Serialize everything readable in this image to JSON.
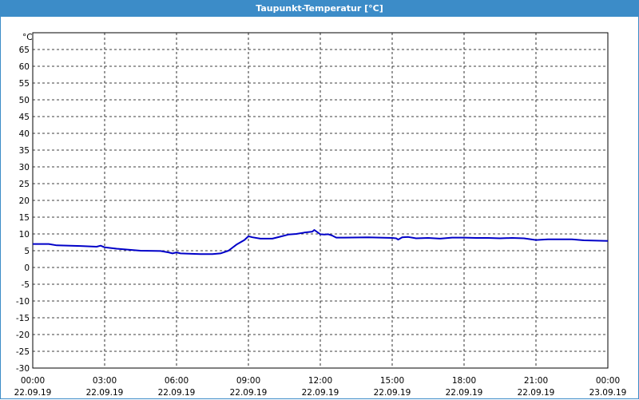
{
  "window": {
    "title": "Taupunkt-Temperatur [°C]"
  },
  "chart_data": {
    "type": "line",
    "title": "Taupunkt-Temperatur [°C]",
    "y_unit_label": "°C",
    "ylim": [
      -30,
      70
    ],
    "y_ticks": [
      65,
      60,
      55,
      50,
      45,
      40,
      35,
      30,
      25,
      20,
      15,
      10,
      5,
      0,
      -5,
      -10,
      -15,
      -20,
      -25,
      -30
    ],
    "x_range": [
      "22.09.19 00:00",
      "23.09.19 00:00"
    ],
    "x_ticks": [
      {
        "time": "00:00",
        "date": "22.09.19"
      },
      {
        "time": "03:00",
        "date": "22.09.19"
      },
      {
        "time": "06:00",
        "date": "22.09.19"
      },
      {
        "time": "09:00",
        "date": "22.09.19"
      },
      {
        "time": "12:00",
        "date": "22.09.19"
      },
      {
        "time": "15:00",
        "date": "22.09.19"
      },
      {
        "time": "18:00",
        "date": "22.09.19"
      },
      {
        "time": "21:00",
        "date": "22.09.19"
      },
      {
        "time": "00:00",
        "date": "23.09.19"
      }
    ],
    "grid": true,
    "series": [
      {
        "color": "#0000c8",
        "points": [
          [
            "22.09.19 00:00",
            7.0
          ],
          [
            "22.09.19 00:40",
            7.0
          ],
          [
            "22.09.19 01:00",
            6.6
          ],
          [
            "22.09.19 02:00",
            6.4
          ],
          [
            "22.09.19 02:40",
            6.2
          ],
          [
            "22.09.19 02:50",
            6.5
          ],
          [
            "22.09.19 03:00",
            6.0
          ],
          [
            "22.09.19 03:30",
            5.6
          ],
          [
            "22.09.19 04:00",
            5.3
          ],
          [
            "22.09.19 04:30",
            5.0
          ],
          [
            "22.09.19 05:20",
            4.9
          ],
          [
            "22.09.19 05:40",
            4.5
          ],
          [
            "22.09.19 05:50",
            4.2
          ],
          [
            "22.09.19 06:00",
            4.5
          ],
          [
            "22.09.19 06:10",
            4.2
          ],
          [
            "22.09.19 06:30",
            4.1
          ],
          [
            "22.09.19 07:00",
            4.0
          ],
          [
            "22.09.19 07:30",
            4.0
          ],
          [
            "22.09.19 07:50",
            4.2
          ],
          [
            "22.09.19 08:10",
            5.0
          ],
          [
            "22.09.19 08:30",
            6.8
          ],
          [
            "22.09.19 08:50",
            8.2
          ],
          [
            "22.09.19 09:00",
            9.3
          ],
          [
            "22.09.19 09:10",
            9.0
          ],
          [
            "22.09.19 09:30",
            8.6
          ],
          [
            "22.09.19 10:00",
            8.6
          ],
          [
            "22.09.19 10:20",
            9.2
          ],
          [
            "22.09.19 10:40",
            9.8
          ],
          [
            "22.09.19 11:00",
            10.0
          ],
          [
            "22.09.19 11:20",
            10.4
          ],
          [
            "22.09.19 11:40",
            10.7
          ],
          [
            "22.09.19 11:45",
            11.2
          ],
          [
            "22.09.19 12:00",
            9.9
          ],
          [
            "22.09.19 12:10",
            9.8
          ],
          [
            "22.09.19 12:20",
            9.9
          ],
          [
            "22.09.19 12:30",
            9.5
          ],
          [
            "22.09.19 12:40",
            8.9
          ],
          [
            "22.09.19 13:00",
            8.9
          ],
          [
            "22.09.19 14:00",
            9.0
          ],
          [
            "22.09.19 15:00",
            8.8
          ],
          [
            "22.09.19 15:10",
            8.7
          ],
          [
            "22.09.19 15:15",
            8.3
          ],
          [
            "22.09.19 15:25",
            9.0
          ],
          [
            "22.09.19 15:40",
            9.1
          ],
          [
            "22.09.19 16:00",
            8.7
          ],
          [
            "22.09.19 16:30",
            8.8
          ],
          [
            "22.09.19 17:00",
            8.6
          ],
          [
            "22.09.19 17:30",
            8.9
          ],
          [
            "22.09.19 18:00",
            8.9
          ],
          [
            "22.09.19 18:30",
            8.8
          ],
          [
            "22.09.19 19:00",
            8.8
          ],
          [
            "22.09.19 19:30",
            8.7
          ],
          [
            "22.09.19 20:00",
            8.8
          ],
          [
            "22.09.19 20:30",
            8.7
          ],
          [
            "22.09.19 21:00",
            8.2
          ],
          [
            "22.09.19 21:30",
            8.4
          ],
          [
            "22.09.19 22:30",
            8.4
          ],
          [
            "22.09.19 23:00",
            8.1
          ],
          [
            "22.09.19 23:30",
            8.0
          ],
          [
            "23.09.19 00:00",
            7.9
          ]
        ]
      }
    ]
  }
}
